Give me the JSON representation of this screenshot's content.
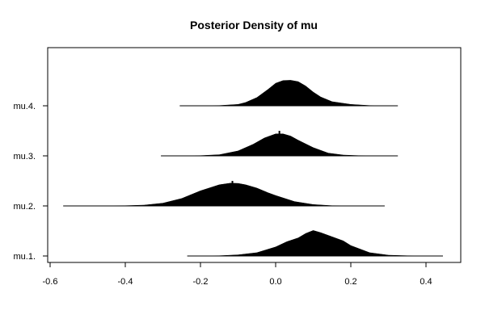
{
  "chart_data": {
    "type": "area",
    "title": "Posterior Density of mu",
    "xlabel": "",
    "ylabel": "",
    "xlim": [
      -0.615,
      0.485
    ],
    "x_ticks": [
      -0.6,
      -0.4,
      -0.2,
      0.0,
      0.2,
      0.4
    ],
    "x_tick_labels": [
      "-0.6",
      "-0.4",
      "-0.2",
      "0.0",
      "0.2",
      "0.4"
    ],
    "grid": false,
    "series": [
      {
        "name": "mu.1.",
        "min": -0.235,
        "max": 0.445,
        "mean": 0.1,
        "density": [
          [
            -0.235,
            0.0
          ],
          [
            -0.15,
            0.01
          ],
          [
            -0.1,
            0.04
          ],
          [
            -0.05,
            0.12
          ],
          [
            0.0,
            0.33
          ],
          [
            0.03,
            0.52
          ],
          [
            0.06,
            0.66
          ],
          [
            0.08,
            0.82
          ],
          [
            0.1,
            0.93
          ],
          [
            0.12,
            0.85
          ],
          [
            0.15,
            0.7
          ],
          [
            0.18,
            0.55
          ],
          [
            0.2,
            0.38
          ],
          [
            0.25,
            0.12
          ],
          [
            0.3,
            0.03
          ],
          [
            0.35,
            0.01
          ],
          [
            0.445,
            0.0
          ]
        ]
      },
      {
        "name": "mu.2.",
        "min": -0.565,
        "max": 0.29,
        "mean": -0.115,
        "density": [
          [
            -0.565,
            0.0
          ],
          [
            -0.4,
            0.01
          ],
          [
            -0.35,
            0.03
          ],
          [
            -0.3,
            0.1
          ],
          [
            -0.25,
            0.27
          ],
          [
            -0.2,
            0.55
          ],
          [
            -0.15,
            0.77
          ],
          [
            -0.12,
            0.83
          ],
          [
            -0.1,
            0.82
          ],
          [
            -0.08,
            0.77
          ],
          [
            -0.05,
            0.65
          ],
          [
            -0.02,
            0.48
          ],
          [
            0.0,
            0.38
          ],
          [
            0.05,
            0.16
          ],
          [
            0.1,
            0.05
          ],
          [
            0.15,
            0.01
          ],
          [
            0.29,
            0.0
          ]
        ]
      },
      {
        "name": "mu.3.",
        "min": -0.305,
        "max": 0.325,
        "mean": 0.01,
        "density": [
          [
            -0.305,
            0.0
          ],
          [
            -0.2,
            0.01
          ],
          [
            -0.15,
            0.04
          ],
          [
            -0.1,
            0.18
          ],
          [
            -0.06,
            0.42
          ],
          [
            -0.03,
            0.65
          ],
          [
            0.0,
            0.8
          ],
          [
            0.02,
            0.8
          ],
          [
            0.04,
            0.72
          ],
          [
            0.06,
            0.57
          ],
          [
            0.1,
            0.3
          ],
          [
            0.14,
            0.1
          ],
          [
            0.18,
            0.03
          ],
          [
            0.22,
            0.01
          ],
          [
            0.325,
            0.0
          ]
        ]
      },
      {
        "name": "mu.4.",
        "min": -0.255,
        "max": 0.325,
        "mean": 0.025,
        "density": [
          [
            -0.255,
            0.0
          ],
          [
            -0.15,
            0.01
          ],
          [
            -0.1,
            0.05
          ],
          [
            -0.08,
            0.12
          ],
          [
            -0.05,
            0.3
          ],
          [
            -0.02,
            0.6
          ],
          [
            0.0,
            0.82
          ],
          [
            0.02,
            0.92
          ],
          [
            0.04,
            0.93
          ],
          [
            0.06,
            0.88
          ],
          [
            0.08,
            0.72
          ],
          [
            0.1,
            0.5
          ],
          [
            0.12,
            0.32
          ],
          [
            0.15,
            0.15
          ],
          [
            0.2,
            0.05
          ],
          [
            0.25,
            0.01
          ],
          [
            0.325,
            0.0
          ]
        ]
      }
    ]
  }
}
